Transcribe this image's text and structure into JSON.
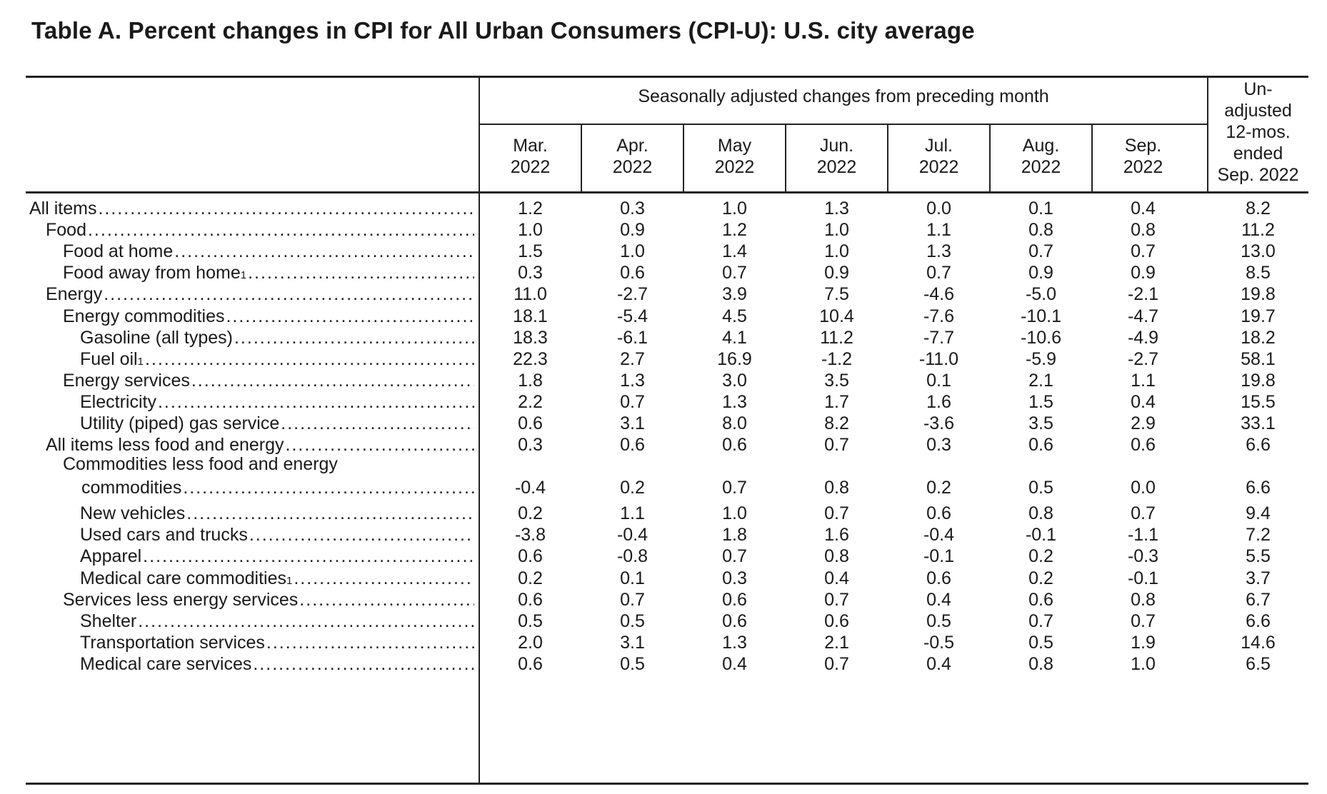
{
  "title": "Table A. Percent changes in CPI for All Urban Consumers (CPI-U): U.S. city average",
  "header": {
    "group_label": "Seasonally adjusted changes from preceding month",
    "months": [
      {
        "month": "Mar.",
        "year": "2022"
      },
      {
        "month": "Apr.",
        "year": "2022"
      },
      {
        "month": "May",
        "year": "2022"
      },
      {
        "month": "Jun.",
        "year": "2022"
      },
      {
        "month": "Jul.",
        "year": "2022"
      },
      {
        "month": "Aug.",
        "year": "2022"
      },
      {
        "month": "Sep.",
        "year": "2022"
      }
    ],
    "unadjusted_lines": [
      "Un-",
      "adjusted",
      "12-mos.",
      "ended",
      "Sep. 2022"
    ]
  },
  "rows": [
    {
      "label": "All items",
      "footnote": "",
      "indent": 0,
      "values": [
        "1.2",
        "0.3",
        "1.0",
        "1.3",
        "0.0",
        "0.1",
        "0.4",
        "8.2"
      ]
    },
    {
      "label": "Food",
      "footnote": "",
      "indent": 1,
      "values": [
        "1.0",
        "0.9",
        "1.2",
        "1.0",
        "1.1",
        "0.8",
        "0.8",
        "11.2"
      ]
    },
    {
      "label": "Food at home",
      "footnote": "",
      "indent": 2,
      "values": [
        "1.5",
        "1.0",
        "1.4",
        "1.0",
        "1.3",
        "0.7",
        "0.7",
        "13.0"
      ]
    },
    {
      "label": "Food away from home",
      "footnote": "1",
      "indent": 2,
      "values": [
        "0.3",
        "0.6",
        "0.7",
        "0.9",
        "0.7",
        "0.9",
        "0.9",
        "8.5"
      ]
    },
    {
      "label": "Energy",
      "footnote": "",
      "indent": 1,
      "values": [
        "11.0",
        "-2.7",
        "3.9",
        "7.5",
        "-4.6",
        "-5.0",
        "-2.1",
        "19.8"
      ]
    },
    {
      "label": "Energy commodities",
      "footnote": "",
      "indent": 2,
      "values": [
        "18.1",
        "-5.4",
        "4.5",
        "10.4",
        "-7.6",
        "-10.1",
        "-4.7",
        "19.7"
      ]
    },
    {
      "label": "Gasoline (all types)",
      "footnote": "",
      "indent": 3,
      "values": [
        "18.3",
        "-6.1",
        "4.1",
        "11.2",
        "-7.7",
        "-10.6",
        "-4.9",
        "18.2"
      ]
    },
    {
      "label": "Fuel oil",
      "footnote": "1",
      "indent": 3,
      "values": [
        "22.3",
        "2.7",
        "16.9",
        "-1.2",
        "-11.0",
        "-5.9",
        "-2.7",
        "58.1"
      ]
    },
    {
      "label": "Energy services",
      "footnote": "",
      "indent": 2,
      "values": [
        "1.8",
        "1.3",
        "3.0",
        "3.5",
        "0.1",
        "2.1",
        "1.1",
        "19.8"
      ]
    },
    {
      "label": "Electricity",
      "footnote": "",
      "indent": 3,
      "values": [
        "2.2",
        "0.7",
        "1.3",
        "1.7",
        "1.6",
        "1.5",
        "0.4",
        "15.5"
      ]
    },
    {
      "label": "Utility (piped) gas service",
      "footnote": "",
      "indent": 3,
      "values": [
        "0.6",
        "3.1",
        "8.0",
        "8.2",
        "-3.6",
        "3.5",
        "2.9",
        "33.1"
      ]
    },
    {
      "label": "All items less food and energy",
      "footnote": "",
      "indent": 1,
      "values": [
        "0.3",
        "0.6",
        "0.6",
        "0.7",
        "0.3",
        "0.6",
        "0.6",
        "6.6"
      ]
    },
    {
      "label_line1": "Commodities less food and energy",
      "label": "commodities",
      "footnote": "",
      "indent": 2,
      "values": [
        "-0.4",
        "0.2",
        "0.7",
        "0.8",
        "0.2",
        "0.5",
        "0.0",
        "6.6"
      ]
    },
    {
      "label": "New vehicles",
      "footnote": "",
      "indent": 3,
      "values": [
        "0.2",
        "1.1",
        "1.0",
        "0.7",
        "0.6",
        "0.8",
        "0.7",
        "9.4"
      ]
    },
    {
      "label": "Used cars and trucks",
      "footnote": "",
      "indent": 3,
      "values": [
        "-3.8",
        "-0.4",
        "1.8",
        "1.6",
        "-0.4",
        "-0.1",
        "-1.1",
        "7.2"
      ]
    },
    {
      "label": "Apparel",
      "footnote": "",
      "indent": 3,
      "values": [
        "0.6",
        "-0.8",
        "0.7",
        "0.8",
        "-0.1",
        "0.2",
        "-0.3",
        "5.5"
      ]
    },
    {
      "label": "Medical care commodities",
      "footnote": "1",
      "indent": 3,
      "values": [
        "0.2",
        "0.1",
        "0.3",
        "0.4",
        "0.6",
        "0.2",
        "-0.1",
        "3.7"
      ]
    },
    {
      "label": "Services less energy services",
      "footnote": "",
      "indent": 2,
      "values": [
        "0.6",
        "0.7",
        "0.6",
        "0.7",
        "0.4",
        "0.6",
        "0.8",
        "6.7"
      ]
    },
    {
      "label": "Shelter",
      "footnote": "",
      "indent": 3,
      "values": [
        "0.5",
        "0.5",
        "0.6",
        "0.6",
        "0.5",
        "0.7",
        "0.7",
        "6.6"
      ]
    },
    {
      "label": "Transportation services",
      "footnote": "",
      "indent": 3,
      "values": [
        "2.0",
        "3.1",
        "1.3",
        "2.1",
        "-0.5",
        "0.5",
        "1.9",
        "14.6"
      ]
    },
    {
      "label": "Medical care services",
      "footnote": "",
      "indent": 3,
      "values": [
        "0.6",
        "0.5",
        "0.4",
        "0.7",
        "0.4",
        "0.8",
        "1.0",
        "6.5"
      ]
    }
  ]
}
